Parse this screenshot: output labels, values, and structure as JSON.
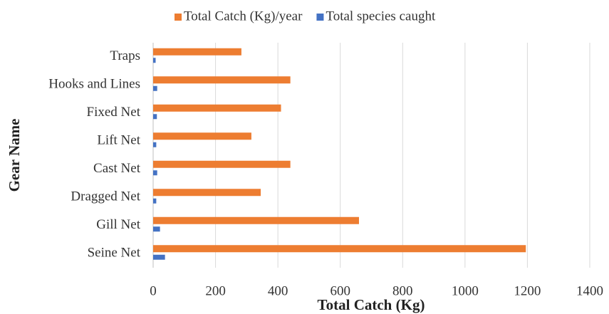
{
  "chart_data": {
    "type": "bar",
    "orientation": "horizontal",
    "x_label": "Total Catch (Kg)",
    "y_label": "Gear Name",
    "categories": [
      "Seine Net",
      "Gill Net",
      "Dragged Net",
      "Cast Net",
      "Lift Net",
      "Fixed Net",
      "Hooks and Lines",
      "Traps"
    ],
    "series": [
      {
        "name": "Total Catch (Kg)/year",
        "color": "#ed7d31",
        "values": [
          1195,
          660,
          345,
          440,
          315,
          410,
          440,
          283
        ]
      },
      {
        "name": "Total species caught",
        "color": "#4472c4",
        "values": [
          38,
          22,
          10,
          13,
          10,
          12,
          13,
          8
        ]
      }
    ],
    "xlim": [
      0,
      1400
    ],
    "xticks": [
      0,
      200,
      400,
      600,
      800,
      1000,
      1200,
      1400
    ],
    "grid": true,
    "legend": "top"
  }
}
